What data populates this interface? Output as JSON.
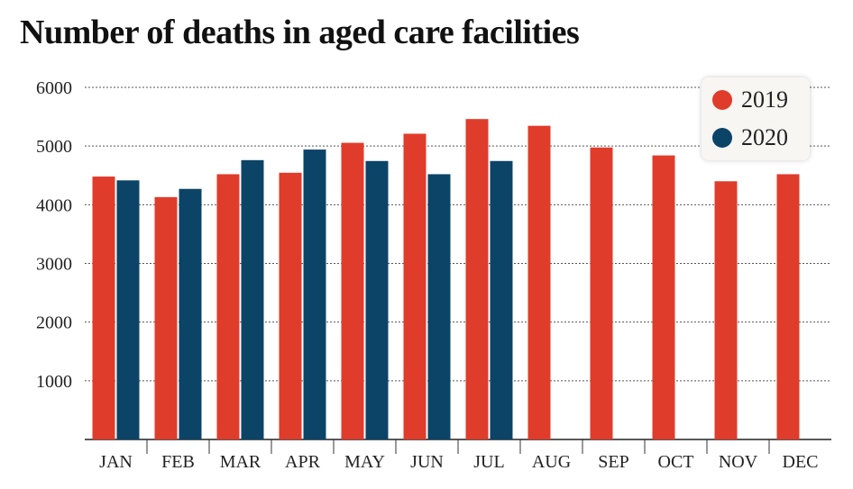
{
  "chart_data": {
    "type": "bar",
    "title": "Number of deaths in aged care facilities",
    "categories": [
      "JAN",
      "FEB",
      "MAR",
      "APR",
      "MAY",
      "JUN",
      "JUL",
      "AUG",
      "SEP",
      "OCT",
      "NOV",
      "DEC"
    ],
    "series": [
      {
        "name": "2019",
        "color": "#e03c2b",
        "values": [
          4480,
          4130,
          4520,
          4545,
          5055,
          5210,
          5460,
          5345,
          4975,
          4840,
          4400,
          4520
        ]
      },
      {
        "name": "2020",
        "color": "#0c4468",
        "values": [
          4415,
          4270,
          4760,
          4940,
          4745,
          4520,
          4745,
          null,
          null,
          null,
          null,
          null
        ]
      }
    ],
    "yticks": [
      1000,
      2000,
      3000,
      4000,
      5000,
      6000
    ],
    "ylim": [
      0,
      6000
    ],
    "grid": true,
    "legend": "top-right"
  }
}
